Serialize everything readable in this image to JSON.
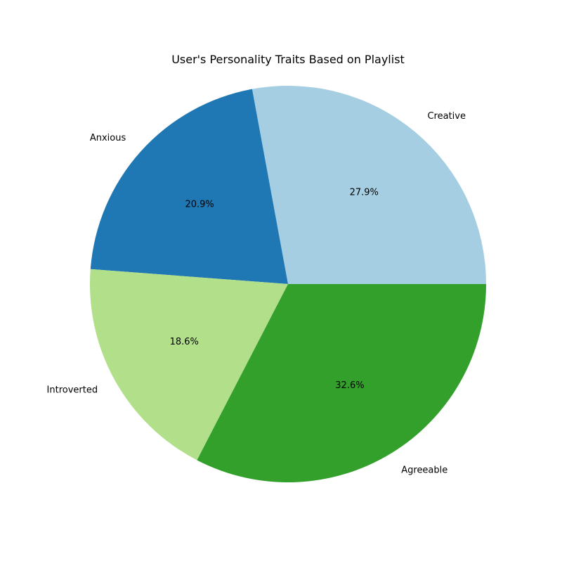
{
  "chart_data": {
    "type": "pie",
    "title": "User's Personality Traits Based on Playlist",
    "slices": [
      {
        "label": "Creative",
        "value": 27.9,
        "pct_label": "27.9%",
        "color": "#a6cee3"
      },
      {
        "label": "Anxious",
        "value": 20.9,
        "pct_label": "20.9%",
        "color": "#1f78b4"
      },
      {
        "label": "Introverted",
        "value": 18.6,
        "pct_label": "18.6%",
        "color": "#b2df8a"
      },
      {
        "label": "Agreeable",
        "value": 32.6,
        "pct_label": "32.6%",
        "color": "#33a02c"
      }
    ],
    "start_angle_deg": 0,
    "direction": "counterclockwise",
    "legend": "none"
  }
}
